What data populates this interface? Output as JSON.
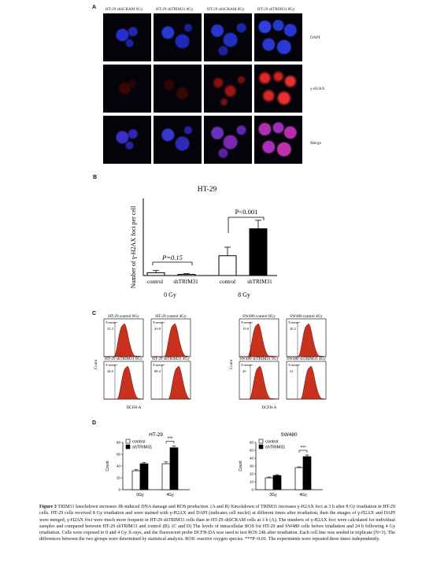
{
  "panelA": {
    "label": "A",
    "headers": [
      "HT-29 shSCRAM 0Gy",
      "HT-29 shTRIM31 0Gy",
      "HT-29 shSCRAM 8Gy",
      "HT-29 shTRIM31 8Gy"
    ],
    "rows": [
      "DAPI",
      "γ-H2AX",
      "Merge"
    ]
  },
  "panelB": {
    "label": "B",
    "title": "HT-29",
    "ylabel": "Number of γ-H2AX foci per cell",
    "ann_left": "P=0.15",
    "ann_right": "P<0.001",
    "cat_labels": [
      "control",
      "shTRIM31",
      "control",
      "shTRIM31"
    ],
    "group_labels": [
      "0 Gy",
      "8 Gy"
    ]
  },
  "panelC": {
    "label": "C",
    "panels": [
      {
        "title": "HT-29 control 0Gy",
        "value": "33.3"
      },
      {
        "title": "HT-29 control 4Gy",
        "value": "43.8"
      },
      {
        "title": "HT-29 shTRIM31 0Gy",
        "value": "44.6"
      },
      {
        "title": "HT-29 shTRIM31 4Gy",
        "value": "68.4"
      },
      {
        "title": "SW480 control 0Gy",
        "value": "15.8"
      },
      {
        "title": "SW480 control 4Gy",
        "value": "30.2"
      },
      {
        "title": "SW480 shTRIM31 0Gy",
        "value": "20"
      },
      {
        "title": "SW480 shTRIM31 4Gy",
        "value": "41"
      }
    ],
    "gate_label": "X-mean=",
    "xlabel": "DCFH-A",
    "ylabel": "Count"
  },
  "panelD": {
    "label": "D",
    "sig": "***",
    "legend": [
      "control",
      "shTRIM31"
    ]
  },
  "chart_data": [
    {
      "type": "bar",
      "title": "HT-29",
      "ylabel": "Number of γ-H2AX foci per cell",
      "categories": [
        "control 0 Gy",
        "shTRIM31 0 Gy",
        "control 8 Gy",
        "shTRIM31 8 Gy"
      ],
      "values": [
        2,
        0.8,
        14,
        33
      ],
      "errors": [
        1.5,
        0.5,
        6,
        6
      ],
      "colors": [
        "#ffffff",
        "#ffffff",
        "#ffffff",
        "#000000"
      ],
      "ylim": [
        0,
        50
      ]
    },
    {
      "type": "bar",
      "title": "HT-29",
      "ylabel": "Count",
      "categories": [
        "0Gy",
        "4Gy"
      ],
      "ticks": [
        0,
        20,
        40,
        60,
        80
      ],
      "ylim": [
        0,
        80
      ],
      "series": [
        {
          "name": "control",
          "values": [
            32,
            44
          ],
          "errors": [
            2,
            3
          ],
          "color": "#ffffff"
        },
        {
          "name": "shTRIM31",
          "values": [
            44,
            71
          ],
          "errors": [
            2,
            3
          ],
          "color": "#000000"
        }
      ]
    },
    {
      "type": "bar",
      "title": "SW480",
      "ylabel": "Count",
      "categories": [
        "0Gy",
        "4Gy"
      ],
      "ticks": [
        0,
        10,
        20,
        30,
        40,
        50,
        60
      ],
      "ylim": [
        0,
        60
      ],
      "series": [
        {
          "name": "control",
          "values": [
            15,
            28
          ],
          "errors": [
            1,
            1
          ],
          "color": "#ffffff"
        },
        {
          "name": "shTRIM31",
          "values": [
            18,
            42
          ],
          "errors": [
            1,
            2
          ],
          "color": "#000000"
        }
      ]
    }
  ],
  "caption": {
    "lead": "Figure 3",
    "lead_rest": " TRIM31 knockdown increases IR-induced DNA damage and ROS production.",
    "body": " (A and B) Knockdown of TRIM31 increases γ-H2AX foci at 3 h after 8 Gy irradiation in HT-29 cells. HT-29 cells received 8 Gy irradiation and were stained with γ-H2AX and DAPI (indicates cell nuclei) at different times after irradiation, then the images of γ-H2AX and DAPI were merged, γ-H2AX foci were much more frequent in HT-29 shTRIM31 cells than in HT-29 shSCRAM cells at 3 h (A). The numbers of γ-H2AX foci were calculated for individual samples and compared between HT-29 shTRIM31 and control (B). (C and D) The levels of intracellular ROS for HT-29 and SW480 cells before irradiation and 24 h following 4 Gy irradiation. Cells were exposed to 0 and 4 Gy X-rays, and the fluorescent probe DCFH-DA was used to test ROS 24h after irradiation. Each cell line was seeded in triplicate (N=3). The differences between the two groups were determined by statistical analysis. ROS: reactive oxygen species. ***P<0.01. The experiments were repeated three times independently."
  }
}
